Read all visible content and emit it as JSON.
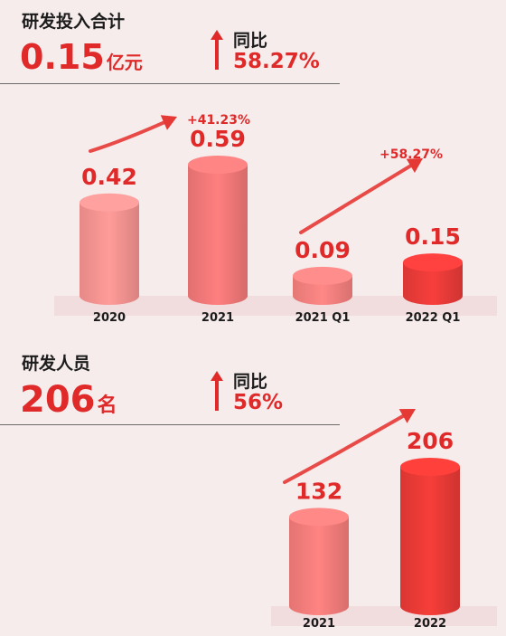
{
  "rd_investment": {
    "title": "研发投入合计",
    "value": "0.15",
    "unit": "亿元",
    "yoy_label": "同比",
    "yoy_value": "58.27%",
    "arrow_icon": "up-arrow-icon"
  },
  "rd_staff": {
    "title": "研发人员",
    "value": "206",
    "unit": "名",
    "yoy_label": "同比",
    "yoy_value": "56%",
    "arrow_icon": "up-arrow-icon"
  },
  "colors": {
    "accent": "#e02a2a",
    "bar_light": "#f28b8b",
    "bar_dark": "#e53935",
    "text_dark": "#1c1c1c",
    "background": "#f7ecec"
  },
  "chart_data": [
    {
      "type": "bar",
      "categories": [
        "2020",
        "2021",
        "2021 Q1",
        "2022 Q1"
      ],
      "values": [
        0.42,
        0.59,
        0.09,
        0.15
      ],
      "value_labels": [
        "0.42",
        "0.59",
        "0.09",
        "0.15"
      ],
      "growth_annotations": [
        "+41.23%",
        "+58.27%"
      ],
      "title": "",
      "xlabel": "",
      "ylabel": "",
      "unit": "亿元",
      "grid": false
    },
    {
      "type": "bar",
      "categories": [
        "2021",
        "2022"
      ],
      "values": [
        132,
        206
      ],
      "value_labels": [
        "132",
        "206"
      ],
      "growth_annotations": [],
      "title": "",
      "xlabel": "",
      "ylabel": "",
      "unit": "名",
      "grid": false
    }
  ]
}
